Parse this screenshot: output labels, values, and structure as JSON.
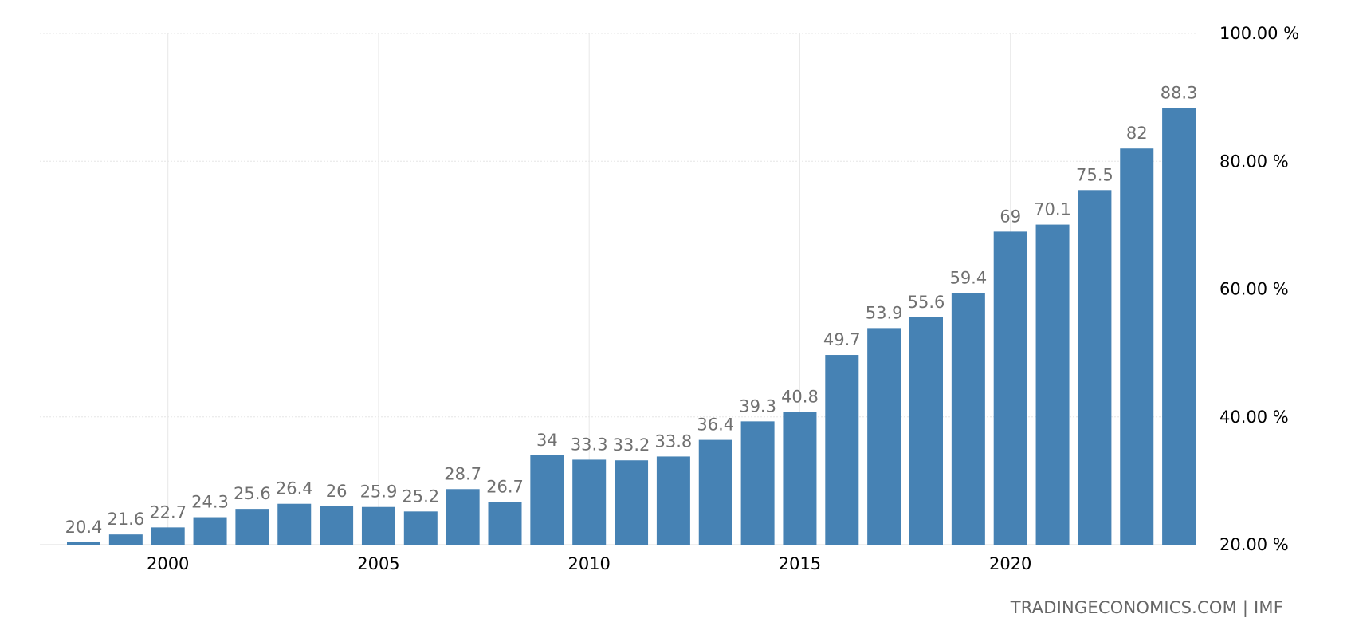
{
  "chart_data": {
    "type": "bar",
    "title": "",
    "xlabel": "",
    "ylabel": "",
    "x": [
      1998,
      1999,
      2000,
      2001,
      2002,
      2003,
      2004,
      2005,
      2006,
      2007,
      2008,
      2009,
      2010,
      2011,
      2012,
      2013,
      2014,
      2015,
      2016,
      2017,
      2018,
      2019,
      2020,
      2021,
      2022,
      2023,
      2024
    ],
    "values": [
      20.4,
      21.6,
      22.7,
      24.3,
      25.6,
      26.4,
      26,
      25.9,
      25.2,
      28.7,
      26.7,
      34,
      33.3,
      33.2,
      33.8,
      36.4,
      39.3,
      40.8,
      49.7,
      53.9,
      55.6,
      59.4,
      69,
      70.1,
      75.5,
      82,
      88.3
    ],
    "data_labels": [
      "20.4",
      "21.6",
      "22.7",
      "24.3",
      "25.6",
      "26.4",
      "26",
      "25.9",
      "25.2",
      "28.7",
      "26.7",
      "34",
      "33.3",
      "33.2",
      "33.8",
      "36.4",
      "39.3",
      "40.8",
      "49.7",
      "53.9",
      "55.6",
      "59.4",
      "69",
      "70.1",
      "75.5",
      "82",
      "88.3"
    ],
    "ylim": [
      20,
      100
    ],
    "y_ticks": [
      20,
      40,
      60,
      80,
      100
    ],
    "y_tick_labels": [
      "20.00 %",
      "40.00 %",
      "60.00 %",
      "80.00 %",
      "100.00 %"
    ],
    "x_ticks": [
      2000,
      2005,
      2010,
      2015,
      2020
    ],
    "x_tick_labels": [
      "2000",
      "2005",
      "2010",
      "2015",
      "2020"
    ],
    "y_axis_position": "right",
    "grid": true,
    "bar_color": "#4682b4"
  },
  "source": "TRADINGECONOMICS.COM  |  IMF"
}
